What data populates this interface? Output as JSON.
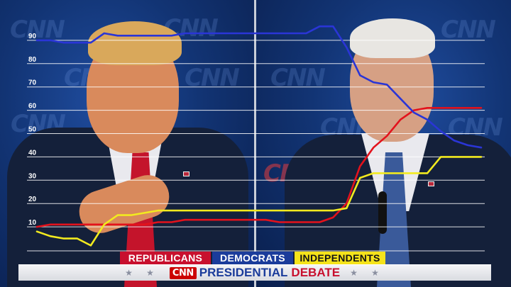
{
  "chart_data": {
    "type": "line",
    "title": "",
    "xlabel": "",
    "ylabel": "",
    "y_ticks": [
      10,
      20,
      30,
      40,
      50,
      60,
      70,
      80,
      90
    ],
    "ylim": [
      0,
      95
    ],
    "grid": true,
    "legend_position": "bottom",
    "x": [
      0,
      1,
      2,
      3,
      4,
      5,
      6,
      7,
      8,
      9,
      10,
      11,
      12,
      13,
      14,
      15,
      16,
      17,
      18,
      19,
      20,
      21,
      22,
      23,
      24,
      25,
      26,
      27,
      28,
      29,
      30,
      31,
      32,
      33
    ],
    "series": [
      {
        "name": "REPUBLICANS",
        "color": "#e3121c",
        "values": [
          10,
          11,
          11,
          11,
          11,
          11,
          11,
          11,
          11,
          12,
          12,
          13,
          13,
          13,
          13,
          13,
          13,
          13,
          12,
          12,
          12,
          12,
          14,
          20,
          36,
          44,
          49,
          56,
          60,
          61,
          61,
          61,
          61,
          61
        ]
      },
      {
        "name": "DEMOCRATS",
        "color": "#2a35d6",
        "values": [
          90,
          90,
          89,
          89,
          89,
          93,
          92,
          92,
          92,
          92,
          92,
          93,
          93,
          93,
          93,
          93,
          93,
          93,
          93,
          93,
          93,
          96,
          96,
          87,
          75,
          72,
          71,
          65,
          59,
          56,
          51,
          47,
          45,
          44
        ]
      },
      {
        "name": "INDEPENDENTS",
        "color": "#f2ea1f",
        "values": [
          8,
          6,
          5,
          5,
          2,
          11,
          15,
          15,
          16,
          17,
          17,
          17,
          17,
          17,
          17,
          17,
          17,
          17,
          17,
          17,
          17,
          17,
          17,
          18,
          31,
          33,
          33,
          33,
          33,
          33,
          40,
          40,
          40,
          40
        ]
      }
    ]
  },
  "lower_third": {
    "party_labels": [
      "REPUBLICANS",
      "DEMOCRATS",
      "INDEPENDENTS"
    ],
    "network": "CNN",
    "title_part_1": "PRESIDENTIAL",
    "title_part_2": "DEBATE",
    "stars": "★ ★",
    "stars_right": "★ ★"
  },
  "colors": {
    "republicans": "#c8102e",
    "democrats": "#1b3c9b",
    "independents": "#f5e31b",
    "grid": "#ffffff"
  }
}
